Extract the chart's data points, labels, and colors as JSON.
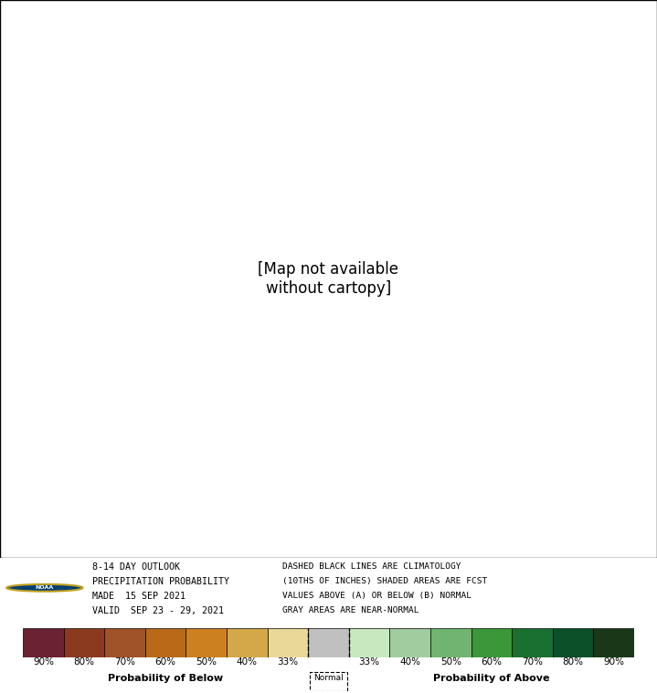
{
  "text_lines_left": [
    "8-14 DAY OUTLOOK",
    "PRECIPITATION PROBABILITY",
    "MADE  15 SEP 2021",
    "VALID  SEP 23 - 29, 2021"
  ],
  "text_lines_right": [
    "DASHED BLACK LINES ARE CLIMATOLOGY",
    "(10THS OF INCHES) SHADED AREAS ARE FCST",
    "VALUES ABOVE (A) OR BELOW (B) NORMAL",
    "GRAY AREAS ARE NEAR-NORMAL"
  ],
  "colorbar_colors": [
    "#6B2232",
    "#8B3A20",
    "#A05228",
    "#B86A18",
    "#CC8020",
    "#D4A848",
    "#EAD898",
    "#C0C0C0",
    "#C8E8C0",
    "#A0CCA0",
    "#70B470",
    "#3A9838",
    "#1A7030",
    "#0A5028",
    "#1A3818"
  ],
  "colorbar_labels_below": [
    "90%",
    "80%",
    "70%",
    "60%",
    "50%",
    "40%",
    "33%"
  ],
  "colorbar_labels_above": [
    "33%",
    "40%",
    "50%",
    "60%",
    "70%",
    "80%",
    "90%"
  ],
  "label_below": "Probability of Below",
  "label_above": "Probability of Above",
  "label_normal": "Normal",
  "background_color": "#FFFFFF"
}
